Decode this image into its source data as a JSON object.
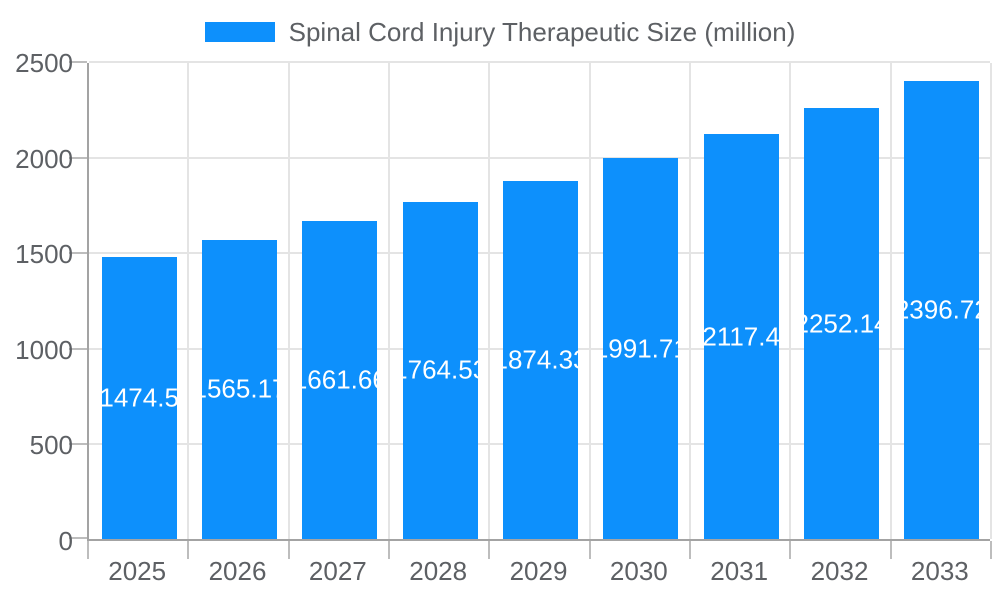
{
  "legend": {
    "label": "Spinal Cord Injury Therapeutic Size (million)"
  },
  "chart_data": {
    "type": "bar",
    "title": "Spinal Cord Injury Therapeutic Size (million)",
    "xlabel": "",
    "ylabel": "",
    "categories": [
      "2025",
      "2026",
      "2027",
      "2028",
      "2029",
      "2030",
      "2031",
      "2032",
      "2033"
    ],
    "values": [
      1474.5,
      1565.17,
      1661.66,
      1764.53,
      1874.33,
      1991.71,
      2117.4,
      2252.14,
      2396.72
    ],
    "bar_labels": [
      "1474.5",
      "1565.17",
      "1661.66",
      "1764.53",
      "1874.33",
      "1991.71",
      "2117.4",
      "2252.14",
      "2396.72"
    ],
    "ylim": [
      0,
      2500
    ],
    "yticks": [
      0,
      500,
      1000,
      1500,
      2000,
      2500
    ],
    "grid": true,
    "legend_position": "top",
    "series_name": "Spinal Cord Injury Therapeutic Size (million)",
    "colors": {
      "bar": "#0d90fc",
      "bar_label": "#ffffff",
      "axis_line": "#a3a3a3",
      "tick_line": "#bdbdbd",
      "grid_line": "#e4e4e4",
      "text": "#5d6064"
    }
  }
}
